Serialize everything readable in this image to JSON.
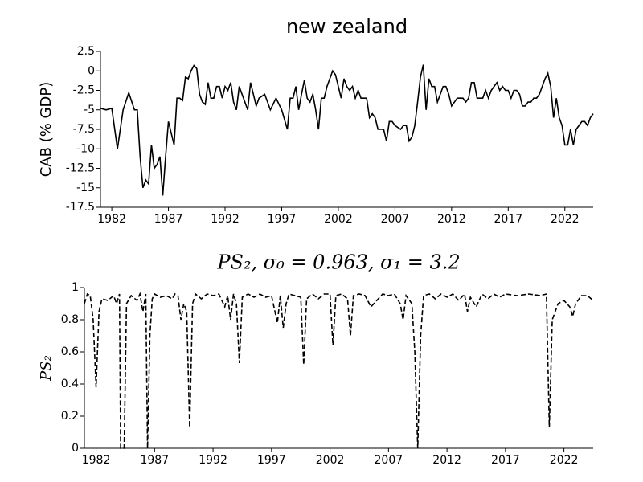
{
  "chart_data": [
    {
      "type": "line",
      "title": "new zealand",
      "y_label": "CAB (% GDP)",
      "color": "#000000",
      "line_style": "solid",
      "xlim": [
        1981,
        2024.5
      ],
      "xticks": [
        1982,
        1987,
        1992,
        1997,
        2002,
        2007,
        2012,
        2017,
        2022
      ],
      "ylim": [
        -17.5,
        2.5
      ],
      "yticks": [
        -17.5,
        -15,
        -12.5,
        -10,
        -7.5,
        -5,
        -2.5,
        0,
        2.5
      ],
      "x": [
        1981,
        1981.5,
        1982,
        1982.5,
        1983,
        1983.5,
        1984,
        1984.25,
        1984.5,
        1984.75,
        1985,
        1985.25,
        1985.5,
        1985.75,
        1986,
        1986.25,
        1986.5,
        1986.75,
        1987,
        1987.5,
        1987.75,
        1988,
        1988.25,
        1988.5,
        1988.75,
        1989,
        1989.25,
        1989.5,
        1989.75,
        1990,
        1990.25,
        1990.5,
        1990.75,
        1991,
        1991.25,
        1991.5,
        1991.75,
        1992,
        1992.25,
        1992.5,
        1992.75,
        1993,
        1993.25,
        1993.5,
        1993.75,
        1994,
        1994.25,
        1994.5,
        1994.75,
        1995,
        1995.5,
        1996,
        1996.5,
        1997,
        1997.5,
        1997.75,
        1998,
        1998.25,
        1998.5,
        1998.75,
        1999,
        1999.25,
        1999.5,
        1999.75,
        2000,
        2000.25,
        2000.5,
        2000.75,
        2001,
        2001.5,
        2001.75,
        2002,
        2002.25,
        2002.5,
        2002.75,
        2003,
        2003.25,
        2003.5,
        2003.75,
        2004,
        2004.5,
        2004.75,
        2005,
        2005.25,
        2005.5,
        2005.75,
        2006,
        2006.25,
        2006.5,
        2006.75,
        2007,
        2007.5,
        2007.75,
        2008,
        2008.25,
        2008.5,
        2008.75,
        2009,
        2009.25,
        2009.5,
        2009.75,
        2010,
        2010.25,
        2010.5,
        2010.75,
        2011,
        2011.25,
        2011.5,
        2011.75,
        2012,
        2012.25,
        2012.5,
        2012.75,
        2013,
        2013.25,
        2013.5,
        2013.75,
        2014,
        2014.25,
        2014.5,
        2014.75,
        2015,
        2015.25,
        2015.5,
        2015.75,
        2016,
        2016.25,
        2016.5,
        2016.75,
        2017,
        2017.25,
        2017.5,
        2017.75,
        2018,
        2018.25,
        2018.5,
        2018.75,
        2019,
        2019.25,
        2019.5,
        2019.75,
        2020,
        2020.25,
        2020.5,
        2020.75,
        2021,
        2021.25,
        2021.5,
        2021.75,
        2022,
        2022.25,
        2022.5,
        2022.75,
        2023,
        2023.25,
        2023.5,
        2023.75,
        2024,
        2024.25,
        2024.5
      ],
      "values": [
        -4.8,
        -5,
        -4.8,
        -10,
        -5,
        -2.8,
        -5,
        -5,
        -11,
        -15,
        -14,
        -14.5,
        -9.5,
        -12.5,
        -12,
        -11,
        -16,
        -11,
        -6.5,
        -9.5,
        -3.5,
        -3.5,
        -3.8,
        -0.8,
        -1,
        0,
        0.7,
        0.3,
        -3,
        -4,
        -4.3,
        -1.5,
        -3.5,
        -3.5,
        -2,
        -2,
        -3.5,
        -2,
        -2.5,
        -1.5,
        -4,
        -5,
        -2,
        -3,
        -4,
        -5,
        -1.5,
        -3,
        -4.5,
        -3.5,
        -3,
        -5,
        -3.5,
        -5,
        -7.5,
        -3.5,
        -3.5,
        -2,
        -5,
        -3,
        -1.2,
        -3.5,
        -4,
        -3,
        -5,
        -7.5,
        -3.5,
        -3.5,
        -2,
        0,
        -0.5,
        -2,
        -3.5,
        -1,
        -2,
        -2.5,
        -2,
        -3.5,
        -2.5,
        -3.5,
        -3.5,
        -6,
        -5.5,
        -6,
        -7.5,
        -7.5,
        -7.5,
        -9,
        -6.5,
        -6.5,
        -7,
        -7.5,
        -7,
        -7,
        -9,
        -8.5,
        -7,
        -4,
        -0.8,
        0.8,
        -5,
        -1,
        -2,
        -2,
        -4,
        -3,
        -2,
        -2,
        -3,
        -4.5,
        -4,
        -3.5,
        -3.5,
        -3.5,
        -4,
        -3.5,
        -1.5,
        -1.5,
        -3.5,
        -3.5,
        -3.5,
        -2.5,
        -3.5,
        -2.5,
        -2,
        -1.5,
        -2.5,
        -2,
        -2.5,
        -2.5,
        -3.5,
        -2.5,
        -2.5,
        -3,
        -4.5,
        -4.5,
        -4,
        -4,
        -3.5,
        -3.5,
        -3,
        -2,
        -1,
        -0.3,
        -2,
        -6,
        -3.5,
        -6,
        -7,
        -9.5,
        -9.5,
        -7.5,
        -9.5,
        -7.5,
        -7,
        -6.5,
        -6.5,
        -7,
        -6,
        -5.5
      ]
    },
    {
      "type": "line",
      "title": "PS₂, σ₀ = 0.963, σ₁ = 3.2",
      "y_label": "PS₂",
      "color": "#000000",
      "line_style": "dashed",
      "xlim": [
        1981,
        2024.5
      ],
      "xticks": [
        1982,
        1987,
        1992,
        1997,
        2002,
        2007,
        2012,
        2017,
        2022
      ],
      "ylim": [
        0,
        1
      ],
      "yticks": [
        0,
        0.2,
        0.4,
        0.6,
        0.8,
        1
      ],
      "x": [
        1981,
        1981.25,
        1981.5,
        1981.75,
        1982,
        1982.25,
        1982.5,
        1983,
        1983.5,
        1983.75,
        1984,
        1984.1,
        1984.4,
        1984.6,
        1985,
        1985.5,
        1985.75,
        1986,
        1986.25,
        1986.4,
        1986.6,
        1986.8,
        1987,
        1987.5,
        1988,
        1988.5,
        1988.75,
        1989,
        1989.25,
        1989.5,
        1989.75,
        1990,
        1990.25,
        1990.5,
        1991,
        1991.5,
        1992,
        1992.5,
        1993,
        1993.25,
        1993.5,
        1993.75,
        1994,
        1994.25,
        1994.5,
        1995,
        1995.5,
        1996,
        1996.5,
        1997,
        1997.5,
        1997.75,
        1998,
        1998.25,
        1998.5,
        1999,
        1999.5,
        1999.75,
        2000,
        2000.5,
        2001,
        2001.5,
        2002,
        2002.25,
        2002.5,
        2003,
        2003.5,
        2003.75,
        2004,
        2004.5,
        2005,
        2005.5,
        2006,
        2006.5,
        2007,
        2007.5,
        2008,
        2008.25,
        2008.5,
        2009,
        2009.25,
        2009.5,
        2009.75,
        2010,
        2010.5,
        2011,
        2011.5,
        2012,
        2012.5,
        2013,
        2013.5,
        2013.75,
        2014,
        2014.5,
        2015,
        2015.5,
        2016,
        2016.5,
        2017,
        2018,
        2019,
        2020,
        2020.5,
        2020.75,
        2021,
        2021.5,
        2022,
        2022.5,
        2022.75,
        2023,
        2023.5,
        2024,
        2024.5
      ],
      "values": [
        0.9,
        0.96,
        0.95,
        0.8,
        0.38,
        0.85,
        0.93,
        0.92,
        0.95,
        0.9,
        0.96,
        0,
        0,
        0.9,
        0.95,
        0.92,
        0.96,
        0.85,
        0.96,
        0,
        0.7,
        0.93,
        0.96,
        0.94,
        0.95,
        0.93,
        0.96,
        0.95,
        0.8,
        0.9,
        0.85,
        0.13,
        0.9,
        0.96,
        0.93,
        0.96,
        0.95,
        0.96,
        0.88,
        0.95,
        0.8,
        0.96,
        0.9,
        0.53,
        0.94,
        0.96,
        0.94,
        0.96,
        0.94,
        0.95,
        0.78,
        0.95,
        0.75,
        0.9,
        0.96,
        0.95,
        0.94,
        0.52,
        0.93,
        0.96,
        0.93,
        0.96,
        0.96,
        0.64,
        0.95,
        0.96,
        0.93,
        0.7,
        0.95,
        0.96,
        0.95,
        0.88,
        0.92,
        0.96,
        0.95,
        0.96,
        0.9,
        0.8,
        0.95,
        0.9,
        0.6,
        0,
        0.7,
        0.95,
        0.96,
        0.93,
        0.96,
        0.94,
        0.96,
        0.92,
        0.96,
        0.85,
        0.94,
        0.88,
        0.96,
        0.93,
        0.96,
        0.94,
        0.96,
        0.95,
        0.96,
        0.95,
        0.96,
        0.13,
        0.8,
        0.9,
        0.92,
        0.88,
        0.82,
        0.9,
        0.95,
        0.95,
        0.92
      ]
    }
  ]
}
